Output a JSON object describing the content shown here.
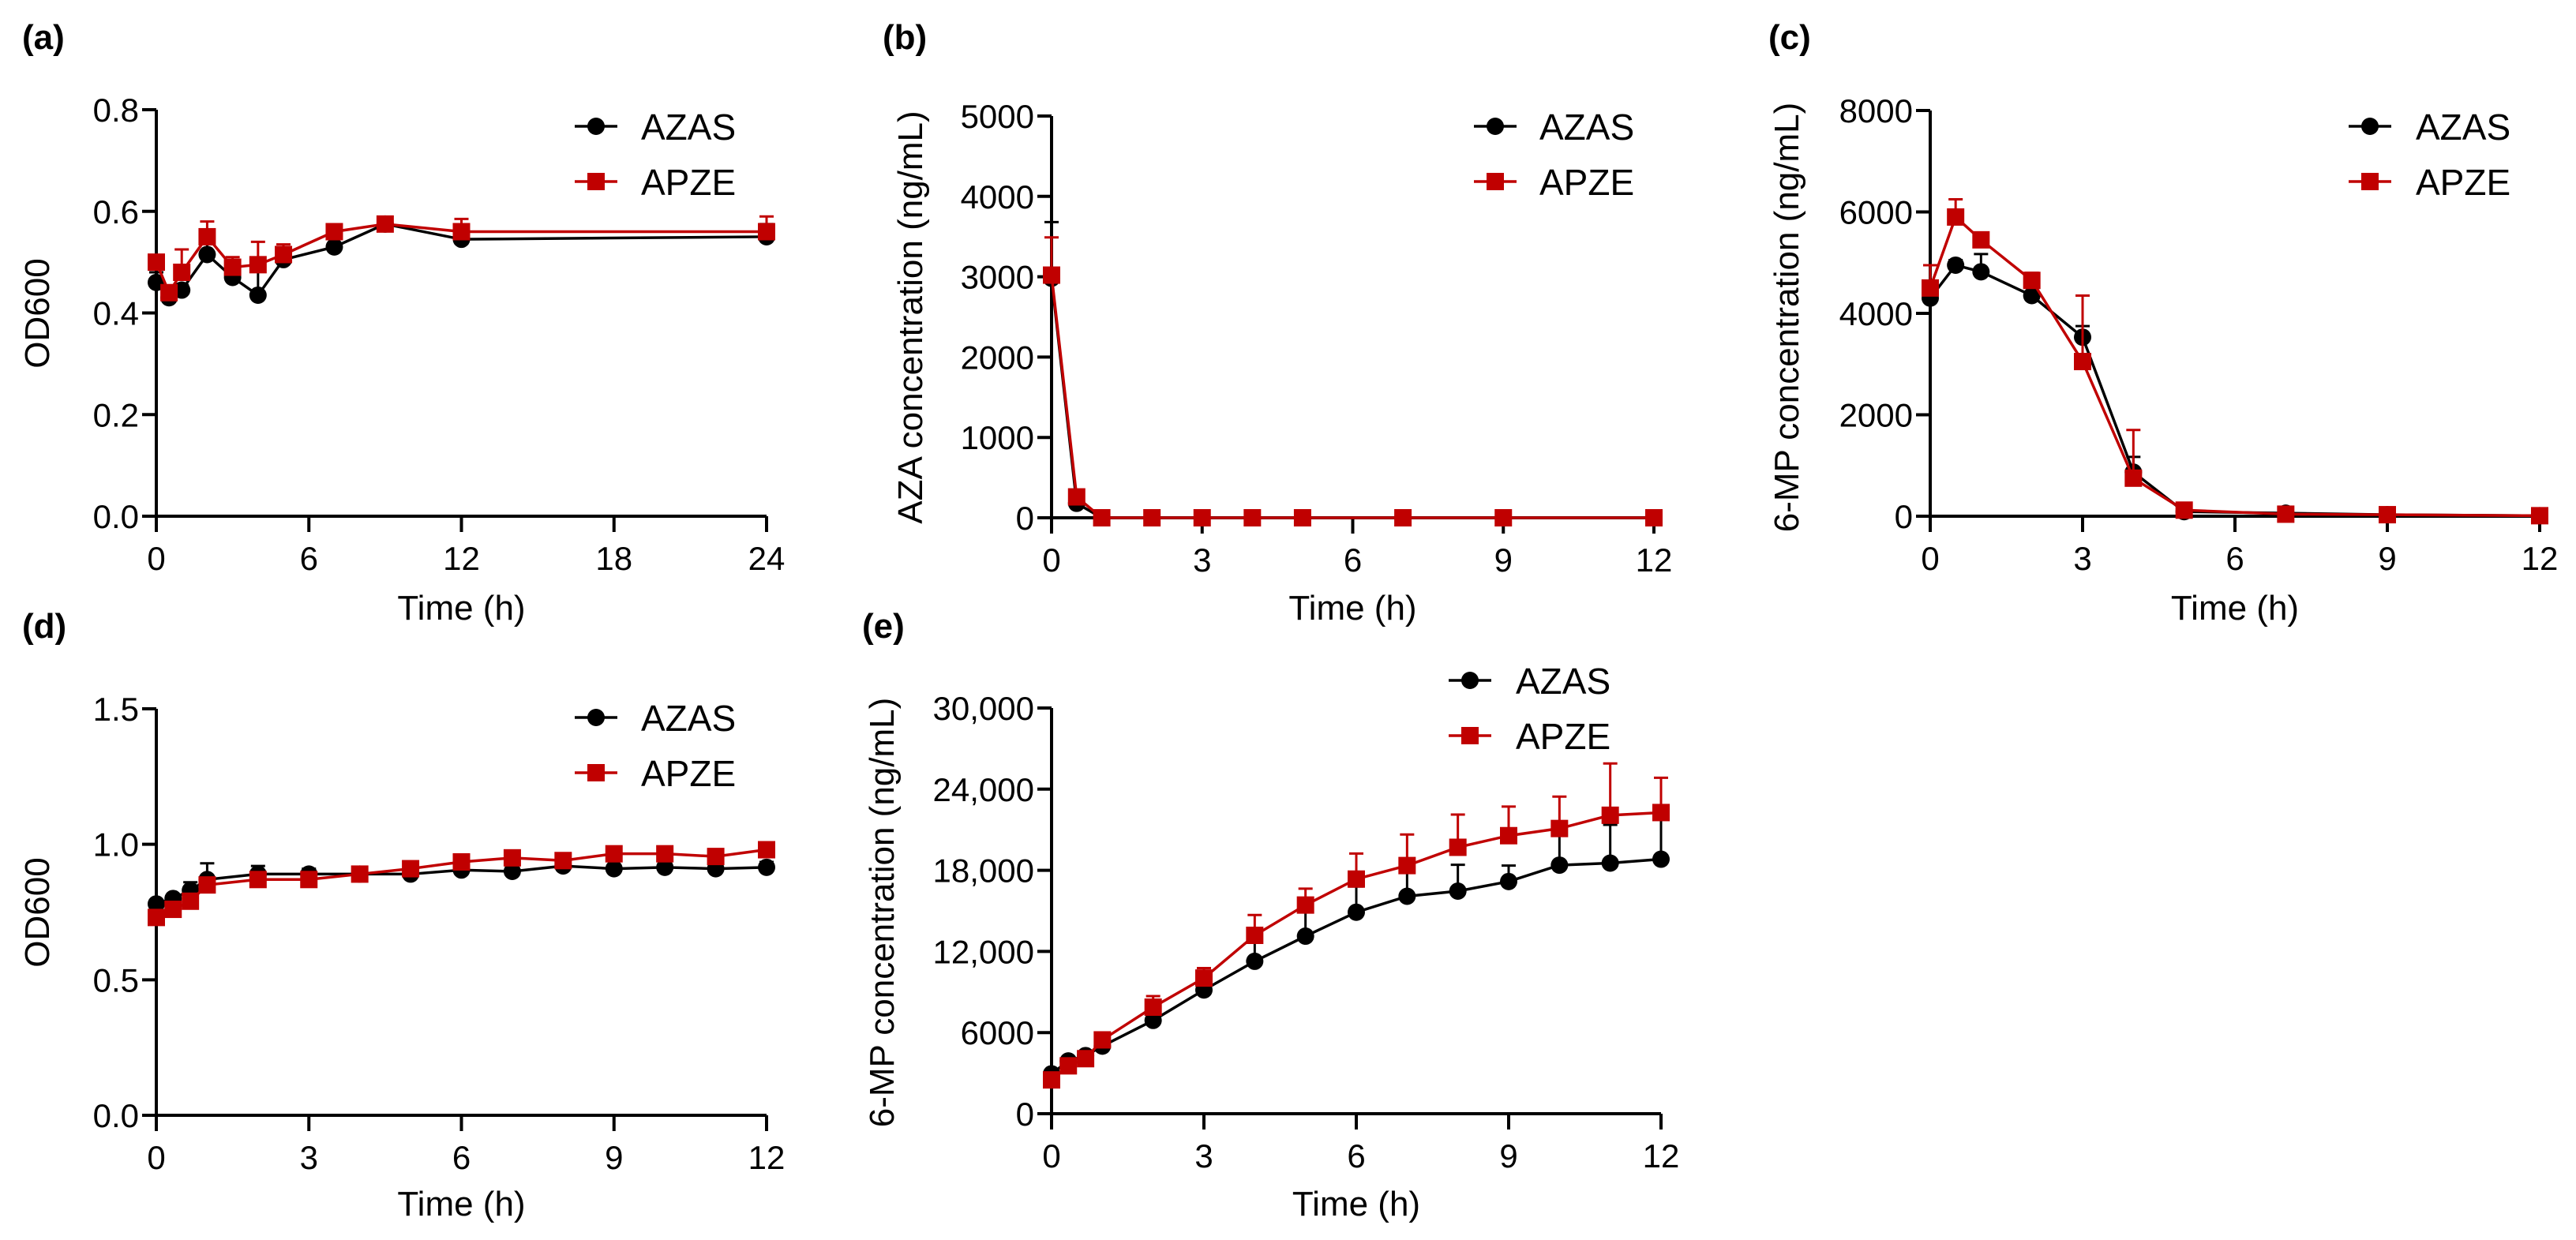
{
  "colors": {
    "AZAS": "#000000",
    "APZE": "#c00000"
  },
  "chart_data": [
    {
      "panel": "(a)",
      "panel_letter": "a",
      "type": "line",
      "xlabel": "Time (h)",
      "ylabel": "OD600",
      "xlim": [
        0,
        24
      ],
      "ylim": [
        0,
        0.8
      ],
      "xticks": [
        0,
        6,
        12,
        18,
        24
      ],
      "xtick_labels": [
        "0",
        "6",
        "12",
        "18",
        "24"
      ],
      "yticks": [
        0,
        0.2,
        0.4,
        0.6,
        0.8
      ],
      "ytick_labels": [
        "0.0",
        "0.2",
        "0.4",
        "0.6",
        "0.8"
      ],
      "legend": "top-right",
      "x": [
        0,
        0.5,
        1,
        2,
        3,
        4,
        5,
        7,
        9,
        12,
        24
      ],
      "series": [
        {
          "name": "AZAS",
          "marker": "circle",
          "values": [
            0.46,
            0.43,
            0.445,
            0.515,
            0.47,
            0.435,
            0.505,
            0.53,
            0.575,
            0.545,
            0.55
          ],
          "error": [
            0.02,
            0.01,
            0.01,
            0.04,
            0.01,
            0.05,
            0.01,
            0.02,
            0.01,
            0.01,
            0.025
          ]
        },
        {
          "name": "APZE",
          "marker": "square",
          "values": [
            0.5,
            0.44,
            0.48,
            0.55,
            0.49,
            0.495,
            0.515,
            0.56,
            0.575,
            0.56,
            0.56
          ],
          "error": [
            0.01,
            0.01,
            0.045,
            0.03,
            0.02,
            0.045,
            0.02,
            0.01,
            0.01,
            0.025,
            0.03
          ]
        }
      ]
    },
    {
      "panel": "(b)",
      "panel_letter": "b",
      "type": "line",
      "xlabel": "Time (h)",
      "ylabel": "AZA concentration (ng/mL)",
      "xlim": [
        0,
        12
      ],
      "ylim": [
        0,
        5000
      ],
      "xticks": [
        0,
        3,
        6,
        9,
        12
      ],
      "xtick_labels": [
        "0",
        "3",
        "6",
        "9",
        "12"
      ],
      "yticks": [
        0,
        1000,
        2000,
        3000,
        4000,
        5000
      ],
      "ytick_labels": [
        "0",
        "1000",
        "2000",
        "3000",
        "4000",
        "5000"
      ],
      "legend": "top-right",
      "x": [
        0,
        0.5,
        1,
        2,
        3,
        4,
        5,
        7,
        9,
        12
      ],
      "series": [
        {
          "name": "AZAS",
          "marker": "circle",
          "values": [
            2980,
            180,
            0,
            0,
            0,
            0,
            0,
            0,
            0,
            0
          ],
          "error": [
            700,
            40,
            0,
            0,
            0,
            0,
            0,
            0,
            0,
            0
          ]
        },
        {
          "name": "APZE",
          "marker": "square",
          "values": [
            3020,
            260,
            0,
            0,
            0,
            0,
            0,
            0,
            0,
            0
          ],
          "error": [
            470,
            80,
            0,
            0,
            0,
            0,
            0,
            0,
            0,
            0
          ]
        }
      ]
    },
    {
      "panel": "(c)",
      "panel_letter": "c",
      "type": "line",
      "xlabel": "Time (h)",
      "ylabel": "6-MP concentration (ng/mL)",
      "xlim": [
        0,
        12
      ],
      "ylim": [
        0,
        8000
      ],
      "xticks": [
        0,
        3,
        6,
        9,
        12
      ],
      "xtick_labels": [
        "0",
        "3",
        "6",
        "9",
        "12"
      ],
      "yticks": [
        0,
        2000,
        4000,
        6000,
        8000
      ],
      "ytick_labels": [
        "0",
        "2000",
        "4000",
        "6000",
        "8000"
      ],
      "legend": "top-right",
      "x": [
        0,
        0.5,
        1,
        2,
        3,
        4,
        5,
        7,
        9,
        12
      ],
      "series": [
        {
          "name": "AZAS",
          "marker": "circle",
          "values": [
            4300,
            4950,
            4820,
            4350,
            3530,
            870,
            90,
            60,
            30,
            10
          ],
          "error": [
            150,
            100,
            350,
            80,
            220,
            300,
            20,
            20,
            10,
            5
          ]
        },
        {
          "name": "APZE",
          "marker": "square",
          "values": [
            4500,
            5900,
            5450,
            4650,
            3050,
            750,
            120,
            40,
            30,
            10
          ],
          "error": [
            450,
            350,
            80,
            150,
            1300,
            950,
            20,
            10,
            10,
            5
          ]
        }
      ]
    },
    {
      "panel": "(d)",
      "panel_letter": "d",
      "type": "line",
      "xlabel": "Time (h)",
      "ylabel": "OD600",
      "xlim": [
        0,
        12
      ],
      "ylim": [
        0,
        1.5
      ],
      "xticks": [
        0,
        3,
        6,
        9,
        12
      ],
      "xtick_labels": [
        "0",
        "3",
        "6",
        "9",
        "12"
      ],
      "yticks": [
        0,
        0.5,
        1.0,
        1.5
      ],
      "ytick_labels": [
        "0.0",
        "0.5",
        "1.0",
        "1.5"
      ],
      "legend": "top-right",
      "x": [
        0,
        0.33,
        0.67,
        1,
        2,
        3,
        4,
        5,
        6,
        7,
        8,
        9,
        10,
        11,
        12
      ],
      "series": [
        {
          "name": "AZAS",
          "marker": "circle",
          "values": [
            0.78,
            0.8,
            0.83,
            0.87,
            0.89,
            0.89,
            0.89,
            0.89,
            0.905,
            0.9,
            0.92,
            0.91,
            0.915,
            0.91,
            0.915
          ],
          "error": [
            0.01,
            0.01,
            0.03,
            0.06,
            0.03,
            0.02,
            0.01,
            0.01,
            0.01,
            0.01,
            0.03,
            0.01,
            0.01,
            0.01,
            0.02
          ]
        },
        {
          "name": "APZE",
          "marker": "square",
          "values": [
            0.73,
            0.76,
            0.79,
            0.85,
            0.87,
            0.87,
            0.89,
            0.91,
            0.935,
            0.95,
            0.94,
            0.965,
            0.965,
            0.955,
            0.98
          ],
          "error": [
            0.01,
            0.01,
            0.01,
            0.01,
            0.01,
            0.01,
            0.01,
            0.01,
            0.01,
            0.01,
            0.01,
            0.01,
            0.01,
            0.01,
            0.01
          ]
        }
      ]
    },
    {
      "panel": "(e)",
      "panel_letter": "e",
      "type": "line",
      "xlabel": "Time (h)",
      "ylabel": "6-MP concentration (ng/mL)",
      "xlim": [
        0,
        12
      ],
      "ylim": [
        0,
        30000
      ],
      "xticks": [
        0,
        3,
        6,
        9,
        12
      ],
      "xtick_labels": [
        "0",
        "3",
        "6",
        "9",
        "12"
      ],
      "yticks": [
        0,
        6000,
        12000,
        18000,
        24000,
        30000
      ],
      "ytick_labels": [
        "0",
        "6000",
        "12,000",
        "18,000",
        "24,000",
        "30,000"
      ],
      "legend": "top-right",
      "x": [
        0,
        0.33,
        0.67,
        1,
        2,
        3,
        4,
        5,
        6,
        7,
        8,
        9,
        10,
        11,
        12
      ],
      "series": [
        {
          "name": "AZAS",
          "marker": "circle",
          "values": [
            2950,
            3900,
            4300,
            5000,
            6900,
            9150,
            11270,
            13130,
            14900,
            16080,
            16460,
            17170,
            18380,
            18530,
            18820
          ],
          "error": [
            150,
            150,
            150,
            200,
            300,
            600,
            1710,
            1910,
            1900,
            2150,
            1950,
            1180,
            2860,
            2830,
            3000
          ]
        },
        {
          "name": "APZE",
          "marker": "square",
          "values": [
            2500,
            3540,
            4070,
            5460,
            7880,
            10030,
            13190,
            15430,
            17350,
            18350,
            19700,
            20560,
            21090,
            22070,
            22270
          ],
          "error": [
            150,
            150,
            200,
            300,
            820,
            740,
            1500,
            1210,
            1890,
            2300,
            2420,
            2150,
            2360,
            3830,
            2570
          ]
        }
      ]
    }
  ]
}
